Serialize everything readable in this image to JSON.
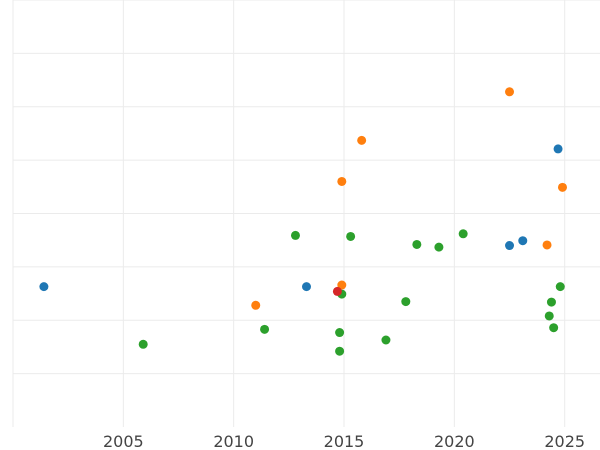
{
  "chart_data": {
    "type": "scatter",
    "title": "",
    "xlabel": "",
    "ylabel": "",
    "grid": true,
    "xlim": [
      2000,
      2026.6
    ],
    "ylim": [
      0,
      8
    ],
    "x_ticks": [
      2005,
      2010,
      2015,
      2020,
      2025
    ],
    "y_ticks_unlabeled": [
      1,
      2,
      3,
      4,
      5,
      6,
      7,
      8
    ],
    "series": [
      {
        "color": "#1f77b4",
        "points": [
          {
            "x": 2001.4,
            "y": 2.63
          },
          {
            "x": 2013.3,
            "y": 2.63
          },
          {
            "x": 2022.5,
            "y": 3.4
          },
          {
            "x": 2023.1,
            "y": 3.49
          },
          {
            "x": 2024.7,
            "y": 5.21
          }
        ]
      },
      {
        "color": "#ff7f0e",
        "points": [
          {
            "x": 2011.0,
            "y": 2.28
          },
          {
            "x": 2014.9,
            "y": 2.66
          },
          {
            "x": 2014.9,
            "y": 4.6
          },
          {
            "x": 2015.8,
            "y": 5.37
          },
          {
            "x": 2022.5,
            "y": 6.28
          },
          {
            "x": 2024.2,
            "y": 3.41
          },
          {
            "x": 2024.9,
            "y": 4.49
          }
        ]
      },
      {
        "color": "#2ca02c",
        "points": [
          {
            "x": 2005.9,
            "y": 1.55
          },
          {
            "x": 2011.4,
            "y": 1.83
          },
          {
            "x": 2012.8,
            "y": 3.59
          },
          {
            "x": 2014.8,
            "y": 1.77
          },
          {
            "x": 2014.8,
            "y": 1.42
          },
          {
            "x": 2014.9,
            "y": 2.49
          },
          {
            "x": 2015.3,
            "y": 3.57
          },
          {
            "x": 2016.9,
            "y": 1.63
          },
          {
            "x": 2017.8,
            "y": 2.35
          },
          {
            "x": 2018.3,
            "y": 3.42
          },
          {
            "x": 2019.3,
            "y": 3.37
          },
          {
            "x": 2020.4,
            "y": 3.62
          },
          {
            "x": 2024.3,
            "y": 2.08
          },
          {
            "x": 2024.4,
            "y": 2.34
          },
          {
            "x": 2024.5,
            "y": 1.86
          },
          {
            "x": 2024.8,
            "y": 2.63
          }
        ]
      },
      {
        "color": "#d62728",
        "points": [
          {
            "x": 2014.7,
            "y": 2.54
          }
        ]
      }
    ]
  }
}
